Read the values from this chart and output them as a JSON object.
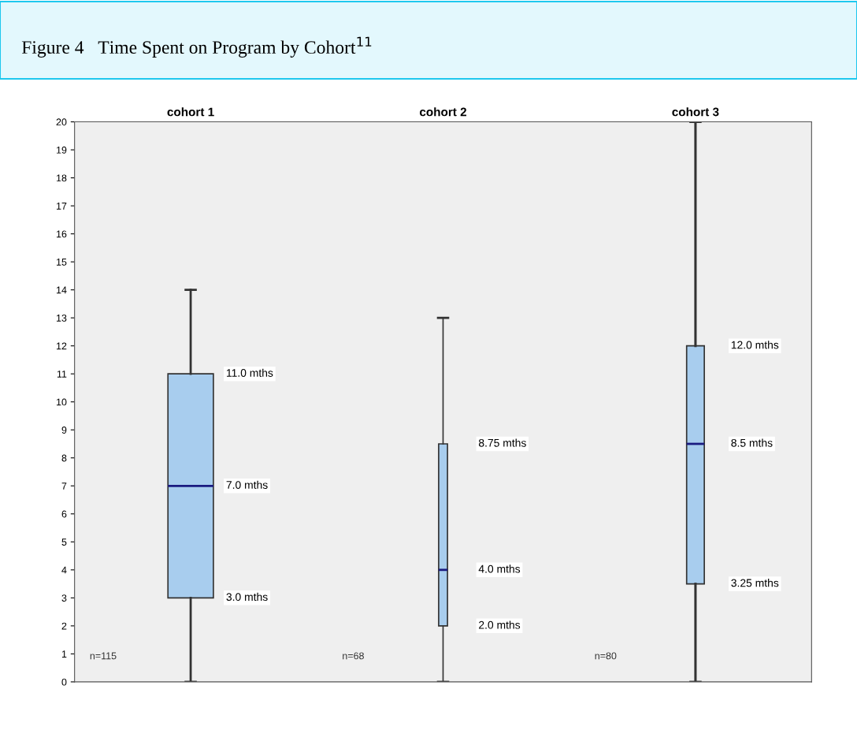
{
  "chart_data": {
    "type": "box",
    "title": "Figure 4   Time Spent on Program by Cohort$^{11}$",
    "categories": [
      "cohort 1",
      "cohort 2",
      "cohort 3"
    ],
    "ylim": [
      0,
      20
    ],
    "yticks": [
      0,
      1,
      2,
      3,
      4,
      5,
      6,
      7,
      8,
      9,
      10,
      11,
      12,
      13,
      14,
      15,
      16,
      17,
      18,
      19,
      20
    ],
    "grid": false,
    "color": "#a8cdee",
    "boxes": [
      {
        "low": 0,
        "q1": 3,
        "median": 7,
        "q3": 11,
        "high": 14
      },
      {
        "low": 0,
        "q1": 2,
        "median": 4,
        "q3": 8.5,
        "high": 13
      },
      {
        "low": 0,
        "q1": 3.5,
        "median": 8.5,
        "q3": 12,
        "high": 20
      }
    ],
    "annotations": [
      "11.0 mths",
      "7.0 mths",
      "3.0 mths",
      "n=115",
      "8.75 mths",
      "4.0 mths",
      "2.0 mths",
      "n=68",
      "12.0 mths",
      "8.5 mths",
      "3.25 mths",
      "n=80"
    ]
  }
}
